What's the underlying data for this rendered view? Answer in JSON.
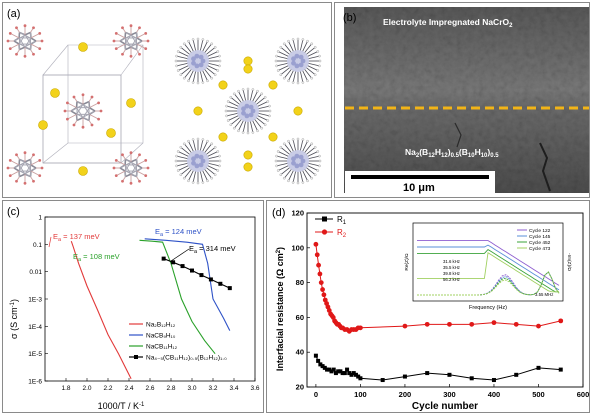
{
  "panel_a": {
    "label": "(a)"
  },
  "panel_b": {
    "label": "(b)",
    "top_label": "Electrolyte Impregnated NaCrO",
    "top_label_sub": "2",
    "bottom_label_parts": [
      "Na",
      "2",
      "(B",
      "12",
      "H",
      "12",
      ")",
      "0.5",
      "(B",
      "10",
      "H",
      "10",
      ")",
      "0.5"
    ],
    "scalebar_label": "10 μm",
    "colors": {
      "divider": "#f2b417"
    }
  },
  "panel_c": {
    "label": "(c)",
    "xlabel": "1000/T / K",
    "xlabel_sup": "-1",
    "ylabel": "σ (S cm",
    "ylabel_sup": "-1",
    "ylabel_close": ")",
    "annotations": [
      {
        "text": "E",
        "sub": "a",
        "rest": " = 137 meV",
        "color": "#e23a3a"
      },
      {
        "text": "E",
        "sub": "a",
        "rest": " = 124 meV",
        "color": "#2e52c7"
      },
      {
        "text": "E",
        "sub": "a",
        "rest": " = 108 meV",
        "color": "#2aa12a"
      },
      {
        "text": "E",
        "sub": "a",
        "rest": " = 314 meV",
        "color": "#000000"
      }
    ],
    "legend": [
      {
        "label": "Na₂B₁₂H₁₂",
        "color": "#e23a3a",
        "marker": false
      },
      {
        "label": "NaCB₉H₁₀",
        "color": "#2e52c7",
        "marker": false
      },
      {
        "label": "NaCB₁₁H₁₂",
        "color": "#2aa12a",
        "marker": false
      },
      {
        "label": "Na₄₋₅(CB₁₁H₁₂)₀.₅(B₁₂H₁₂)₁.₀",
        "color": "#000000",
        "marker": true
      }
    ]
  },
  "panel_d": {
    "label": "(d)",
    "xlabel": "Cycle number",
    "ylabel": "Interfacial resistance (Ω cm",
    "ylabel_sup": "2",
    "ylabel_close": ")",
    "legend": [
      {
        "label": "R",
        "sub": "1",
        "color": "#000000"
      },
      {
        "label": "R",
        "sub": "2",
        "color": "#e01818"
      }
    ],
    "inset": {
      "xlabel": "Frequency (Hz)",
      "ylabel_left": "Re(Z)/Ω",
      "ylabel_right": "-Im(Z)/Ω",
      "legend": [
        {
          "label": "Cycle 122",
          "color": "#8f5fd0"
        },
        {
          "label": "Cycle 145",
          "color": "#5a8fd8"
        },
        {
          "label": "Cycle 452",
          "color": "#3aa33a"
        },
        {
          "label": "Cycle 473",
          "color": "#a0d060"
        }
      ],
      "freq_labels": [
        "31.6 kHz",
        "35.5 kHz",
        "39.8 kHz",
        "56.2 kHz"
      ],
      "end_label": "3.55 MHz"
    }
  },
  "chart_data": [
    {
      "type": "line",
      "panel": "c",
      "xlabel": "1000/T / K-1",
      "ylabel": "σ (S cm-1)",
      "xlim": [
        1.6,
        3.6
      ],
      "ylim": [
        1e-06,
        1
      ],
      "yscale": "log",
      "xticks": [
        "1.8",
        "2.0",
        "2.2",
        "2.4",
        "2.6",
        "2.8",
        "3.0",
        "3.2",
        "3.4",
        "3.6"
      ],
      "yticks": [
        "1E-6",
        "1E-5",
        "1E-4",
        "1E-3",
        "0.01",
        "0.1",
        "1"
      ],
      "series": [
        {
          "name": "Na2B12H12",
          "color": "#e23a3a",
          "x": [
            1.85,
            1.87,
            1.92,
            2.0,
            2.1,
            2.2,
            2.3,
            2.42
          ],
          "y": [
            0.13,
            0.08,
            0.02,
            0.003,
            0.0004,
            5e-05,
            1e-05,
            1.2e-06
          ]
        },
        {
          "name": "NaCB9H10",
          "color": "#2e52c7",
          "x": [
            2.55,
            2.75,
            2.95,
            3.1,
            3.15,
            3.2,
            3.3,
            3.36
          ],
          "y": [
            0.16,
            0.14,
            0.12,
            0.1,
            0.02,
            0.001,
            0.0002,
            7e-05
          ]
        },
        {
          "name": "NaCB11H12",
          "color": "#2aa12a",
          "x": [
            2.5,
            2.62,
            2.72,
            2.8,
            2.9,
            3.0,
            3.12,
            3.22
          ],
          "y": [
            0.14,
            0.13,
            0.12,
            0.02,
            0.001,
            0.00015,
            3e-05,
            1e-05
          ]
        },
        {
          "name": "Na4.5(CB11H12)0.5(B12H12)1.0",
          "color": "#000000",
          "x": [
            2.73,
            2.82,
            2.91,
            3.0,
            3.09,
            3.18,
            3.27,
            3.36
          ],
          "y": [
            0.03,
            0.022,
            0.016,
            0.011,
            0.0075,
            0.0052,
            0.0036,
            0.0025
          ]
        }
      ]
    },
    {
      "type": "line",
      "panel": "d",
      "xlabel": "Cycle number",
      "ylabel": "Interfacial resistance (Ω cm2)",
      "xlim": [
        -20,
        600
      ],
      "ylim": [
        20,
        120
      ],
      "xticks": [
        "0",
        "100",
        "200",
        "300",
        "400",
        "500",
        "600"
      ],
      "yticks": [
        "20",
        "40",
        "60",
        "80",
        "100",
        "120"
      ],
      "series": [
        {
          "name": "R1",
          "color": "#000000",
          "x": [
            0,
            5,
            10,
            15,
            20,
            25,
            30,
            35,
            40,
            45,
            50,
            55,
            60,
            65,
            70,
            75,
            80,
            85,
            90,
            95,
            100,
            150,
            200,
            250,
            300,
            350,
            400,
            450,
            500,
            550
          ],
          "y": [
            38,
            35,
            33,
            32,
            31,
            30,
            30,
            29,
            30,
            28,
            29,
            29,
            28,
            28,
            30,
            28,
            27,
            28,
            27,
            26,
            25,
            24,
            26,
            28,
            27,
            25,
            24,
            27,
            31,
            30
          ]
        },
        {
          "name": "R2",
          "color": "#e01818",
          "x": [
            0,
            3,
            6,
            9,
            12,
            15,
            18,
            21,
            24,
            27,
            30,
            33,
            36,
            39,
            42,
            45,
            48,
            51,
            54,
            57,
            60,
            65,
            70,
            75,
            80,
            85,
            90,
            95,
            100,
            200,
            250,
            300,
            350,
            400,
            450,
            500,
            550
          ],
          "y": [
            102,
            96,
            90,
            85,
            80,
            76,
            73,
            70,
            68,
            66,
            64,
            62,
            61,
            60,
            58,
            57,
            56,
            56,
            55,
            54,
            54,
            53,
            53,
            52,
            53,
            53,
            53,
            54,
            54,
            55,
            56,
            56,
            56,
            57,
            56,
            55,
            58
          ]
        }
      ]
    }
  ]
}
